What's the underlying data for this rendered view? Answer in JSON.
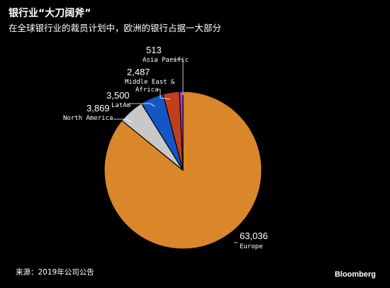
{
  "title": "银行业“大刀阔斧”",
  "subtitle": "在全球银行业的裁员计划中，欧洲的银行占据一大部分",
  "source": "来源：2019年公司公告",
  "brand": "Bloomberg",
  "chart_data": {
    "type": "pie",
    "start_angle_deg": 0,
    "direction": "clockwise",
    "slices": [
      {
        "label": "Europe",
        "value": 63036,
        "display": "63,036",
        "color": "#d9872a"
      },
      {
        "label": "North America",
        "value": 3869,
        "display": "3,869",
        "color": "#c8c8c8"
      },
      {
        "label": "LatAm",
        "value": 3500,
        "display": "3,500",
        "color": "#1656c4"
      },
      {
        "label": "Middle East & Africa",
        "label_lines": [
          "Middle East &",
          "Africa"
        ],
        "value": 2487,
        "display": "2,487",
        "color": "#c0401c"
      },
      {
        "label": "Asia Pacific",
        "value": 513,
        "display": "513",
        "color": "#a83fd1"
      }
    ]
  }
}
